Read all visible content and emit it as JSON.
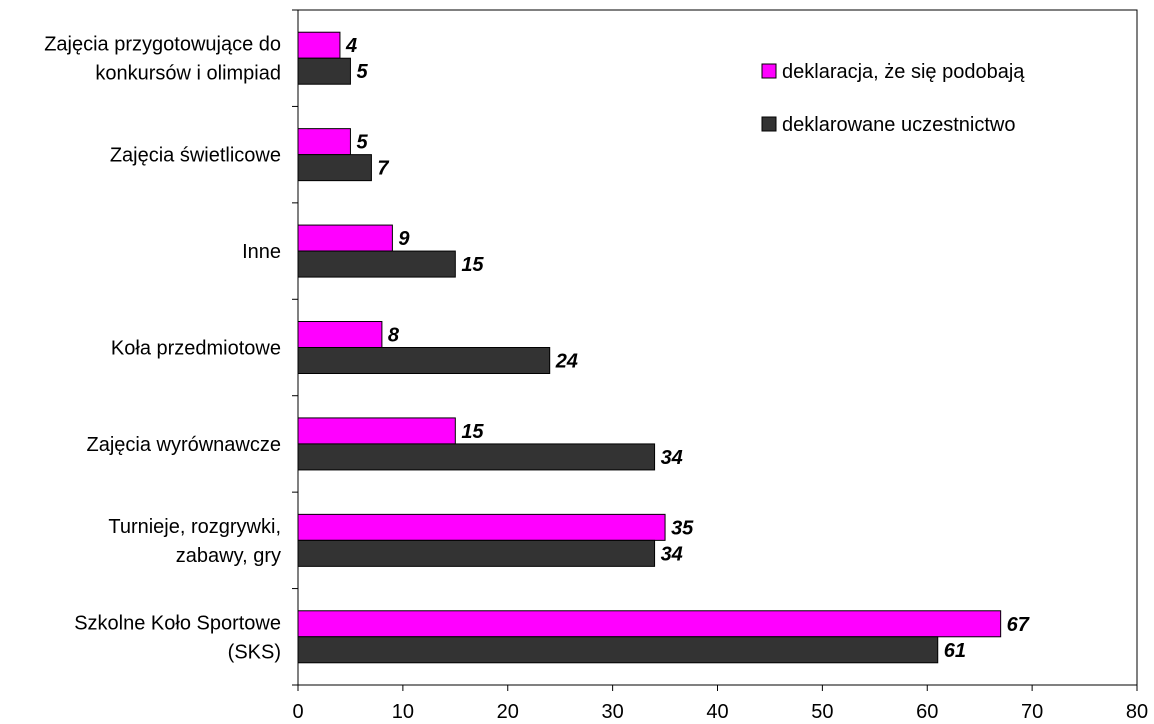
{
  "chart_data": {
    "type": "bar",
    "orientation": "horizontal",
    "title": "",
    "xlabel": "",
    "ylabel": "",
    "xlim": [
      0,
      80
    ],
    "xticks": [
      0,
      10,
      20,
      30,
      40,
      50,
      60,
      70,
      80
    ],
    "grid": false,
    "legend_position": "top-right",
    "categories": [
      [
        "Zajęcia przygotowujące do",
        "konkursów i olimpiad"
      ],
      [
        "Zajęcia świetlicowe"
      ],
      [
        "Inne"
      ],
      [
        "Koła przedmiotowe"
      ],
      [
        "Zajęcia wyrównawcze"
      ],
      [
        "Turnieje, rozgrywki,",
        "zabawy, gry"
      ],
      [
        "Szkolne Koło Sportowe",
        "(SKS)"
      ]
    ],
    "series": [
      {
        "name": "deklaracja, że się podobają",
        "color": "#ff00ff",
        "values": [
          4,
          5,
          9,
          8,
          15,
          35,
          67
        ]
      },
      {
        "name": "deklarowane uczestnictwo",
        "color": "#333333",
        "values": [
          5,
          7,
          15,
          24,
          34,
          34,
          61
        ]
      }
    ]
  }
}
